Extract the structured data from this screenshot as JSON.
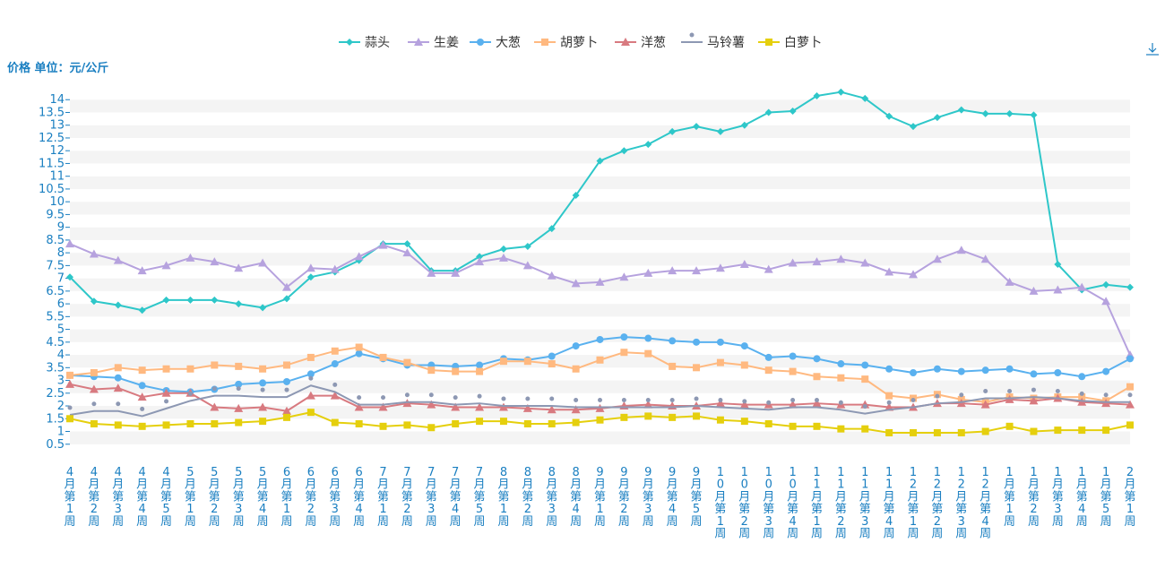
{
  "toolbar": {
    "download_icon": "download-icon"
  },
  "chart_data": {
    "type": "line",
    "title": "",
    "ylabel": "价格 单位：元/公斤",
    "xlabel": "",
    "ylim": [
      0,
      14.5
    ],
    "yticks": [
      0.5,
      1,
      1.5,
      2,
      2.5,
      3,
      3.5,
      4,
      4.5,
      5,
      5.5,
      6,
      6.5,
      7,
      7.5,
      8,
      8.5,
      9,
      9.5,
      10,
      10.5,
      11,
      11.5,
      12,
      12.5,
      13,
      13.5,
      14
    ],
    "grid": "horizontal-bands",
    "legend_position": "top-center",
    "categories": [
      "4月第1周",
      "4月第2周",
      "4月第3周",
      "4月第4周",
      "4月第5周",
      "5月第1周",
      "5月第2周",
      "5月第3周",
      "5月第4周",
      "6月第1周",
      "6月第2周",
      "6月第3周",
      "6月第4周",
      "7月第1周",
      "7月第2周",
      "7月第3周",
      "7月第4周",
      "7月第5周",
      "8月第1周",
      "8月第2周",
      "8月第3周",
      "8月第4周",
      "9月第1周",
      "9月第2周",
      "9月第3周",
      "9月第4周",
      "9月第5周",
      "10月第1周",
      "10月第2周",
      "10月第3周",
      "10月第4周",
      "11月第1周",
      "11月第2周",
      "11月第3周",
      "11月第4周",
      "12月第1周",
      "12月第2周",
      "12月第3周",
      "12月第4周",
      "1月第1周",
      "1月第2周",
      "1月第3周",
      "1月第4周",
      "1月第5周",
      "2月第1周"
    ],
    "series": [
      {
        "name": "蒜头",
        "color": "#2ec7c9",
        "symbol": "diamond",
        "values": [
          7.05,
          6.1,
          5.95,
          5.75,
          6.15,
          6.15,
          6.15,
          6.0,
          5.85,
          6.2,
          7.05,
          7.25,
          7.7,
          8.35,
          8.35,
          7.3,
          7.3,
          7.85,
          8.15,
          8.25,
          8.95,
          10.25,
          11.6,
          12.0,
          12.25,
          12.75,
          12.95,
          12.75,
          13.0,
          13.5,
          13.55,
          14.15,
          14.3,
          14.05,
          13.35,
          12.95,
          13.3,
          13.6,
          13.45,
          13.45,
          13.4,
          7.55,
          6.55,
          6.75,
          6.65
        ]
      },
      {
        "name": "生姜",
        "color": "#b6a2de",
        "symbol": "triangle",
        "values": [
          8.35,
          7.95,
          7.7,
          7.3,
          7.5,
          7.8,
          7.65,
          7.4,
          7.6,
          6.65,
          7.4,
          7.35,
          7.85,
          8.3,
          8.0,
          7.2,
          7.2,
          7.65,
          7.8,
          7.5,
          7.1,
          6.8,
          6.85,
          7.05,
          7.2,
          7.3,
          7.3,
          7.4,
          7.55,
          7.35,
          7.6,
          7.65,
          7.75,
          7.6,
          7.25,
          7.15,
          7.75,
          8.1,
          7.75,
          6.85,
          6.5,
          6.55,
          6.65,
          6.1,
          4.0
        ]
      },
      {
        "name": "大葱",
        "color": "#5ab1ef",
        "symbol": "circle",
        "values": [
          3.2,
          3.15,
          3.1,
          2.8,
          2.6,
          2.55,
          2.65,
          2.85,
          2.9,
          2.95,
          3.25,
          3.65,
          4.05,
          3.85,
          3.6,
          3.6,
          3.55,
          3.6,
          3.85,
          3.8,
          3.95,
          4.35,
          4.6,
          4.7,
          4.65,
          4.55,
          4.5,
          4.5,
          4.35,
          3.9,
          3.95,
          3.85,
          3.65,
          3.6,
          3.45,
          3.3,
          3.45,
          3.35,
          3.4,
          3.45,
          3.25,
          3.3,
          3.15,
          3.35,
          3.85
        ]
      },
      {
        "name": "胡萝卜",
        "color": "#ffb980",
        "symbol": "rect",
        "values": [
          3.2,
          3.3,
          3.5,
          3.4,
          3.45,
          3.45,
          3.6,
          3.55,
          3.45,
          3.6,
          3.9,
          4.15,
          4.3,
          3.9,
          3.7,
          3.4,
          3.35,
          3.35,
          3.75,
          3.75,
          3.65,
          3.45,
          3.8,
          4.1,
          4.05,
          3.55,
          3.5,
          3.7,
          3.6,
          3.4,
          3.35,
          3.15,
          3.1,
          3.05,
          2.4,
          2.3,
          2.45,
          2.25,
          2.15,
          2.35,
          2.3,
          2.35,
          2.35,
          2.2,
          2.75
        ]
      },
      {
        "name": "洋葱",
        "color": "#d87a80",
        "symbol": "triangle",
        "values": [
          2.85,
          2.65,
          2.7,
          2.35,
          2.5,
          2.5,
          1.95,
          1.9,
          1.95,
          1.8,
          2.4,
          2.4,
          1.95,
          1.95,
          2.1,
          2.05,
          1.95,
          1.95,
          1.95,
          1.9,
          1.85,
          1.85,
          1.9,
          2.0,
          2.05,
          2.0,
          2.0,
          2.1,
          2.05,
          2.05,
          2.05,
          2.1,
          2.05,
          2.05,
          1.95,
          1.95,
          2.1,
          2.1,
          2.05,
          2.25,
          2.2,
          2.3,
          2.15,
          2.1,
          2.05
        ]
      },
      {
        "name": "马铃薯",
        "color": "#8d98b3",
        "symbol": "pin",
        "values": [
          1.65,
          1.8,
          1.8,
          1.6,
          1.9,
          2.2,
          2.4,
          2.4,
          2.35,
          2.35,
          2.8,
          2.55,
          2.05,
          2.05,
          2.15,
          2.15,
          2.05,
          2.1,
          2.0,
          2.0,
          2.0,
          1.95,
          1.95,
          1.95,
          1.95,
          1.95,
          2.0,
          1.95,
          1.9,
          1.85,
          1.95,
          1.95,
          1.85,
          1.7,
          1.85,
          1.95,
          2.1,
          2.15,
          2.3,
          2.3,
          2.35,
          2.3,
          2.2,
          2.15,
          2.15
        ]
      },
      {
        "name": "白萝卜",
        "color": "#e5cf0d",
        "symbol": "rect",
        "values": [
          1.5,
          1.3,
          1.25,
          1.2,
          1.25,
          1.3,
          1.3,
          1.35,
          1.4,
          1.55,
          1.75,
          1.35,
          1.3,
          1.2,
          1.25,
          1.15,
          1.3,
          1.4,
          1.4,
          1.3,
          1.3,
          1.35,
          1.45,
          1.55,
          1.6,
          1.55,
          1.6,
          1.45,
          1.4,
          1.3,
          1.2,
          1.2,
          1.1,
          1.1,
          0.95,
          0.95,
          0.95,
          0.95,
          1.0,
          1.2,
          1.0,
          1.05,
          1.05,
          1.05,
          1.25
        ]
      }
    ]
  }
}
